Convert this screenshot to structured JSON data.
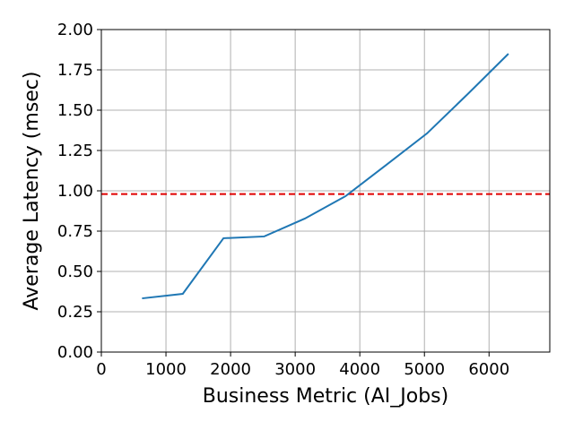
{
  "chart_data": {
    "type": "line",
    "x_label": "Business Metric (AI_Jobs)",
    "y_label": "Average Latency (msec)",
    "x": [
      630,
      1260,
      1890,
      2520,
      3150,
      3780,
      4410,
      5040,
      5670,
      6300
    ],
    "series": [
      {
        "color": "#1f77b4",
        "values": [
          0.333,
          0.361,
          0.706,
          0.717,
          0.828,
          0.967,
          1.161,
          1.356,
          1.6,
          1.85
        ]
      }
    ],
    "threshold": {
      "value": 0.98,
      "color": "#e00000"
    },
    "xlim": [
      0,
      6940
    ],
    "xticks": [
      0,
      1000,
      2000,
      3000,
      4000,
      5000,
      6000
    ],
    "ylim": [
      0,
      2
    ],
    "yticks": [
      {
        "value": 0,
        "label": "0.00"
      },
      {
        "value": 0.25,
        "label": "0.25"
      },
      {
        "value": 0.5,
        "label": "0.50"
      },
      {
        "value": 0.75,
        "label": "0.75"
      },
      {
        "value": 1,
        "label": "1.00"
      },
      {
        "value": 1.25,
        "label": "1.25"
      },
      {
        "value": 1.5,
        "label": "1.50"
      },
      {
        "value": 1.75,
        "label": "1.75"
      },
      {
        "value": 2,
        "label": "2.00"
      }
    ],
    "grid": true
  }
}
